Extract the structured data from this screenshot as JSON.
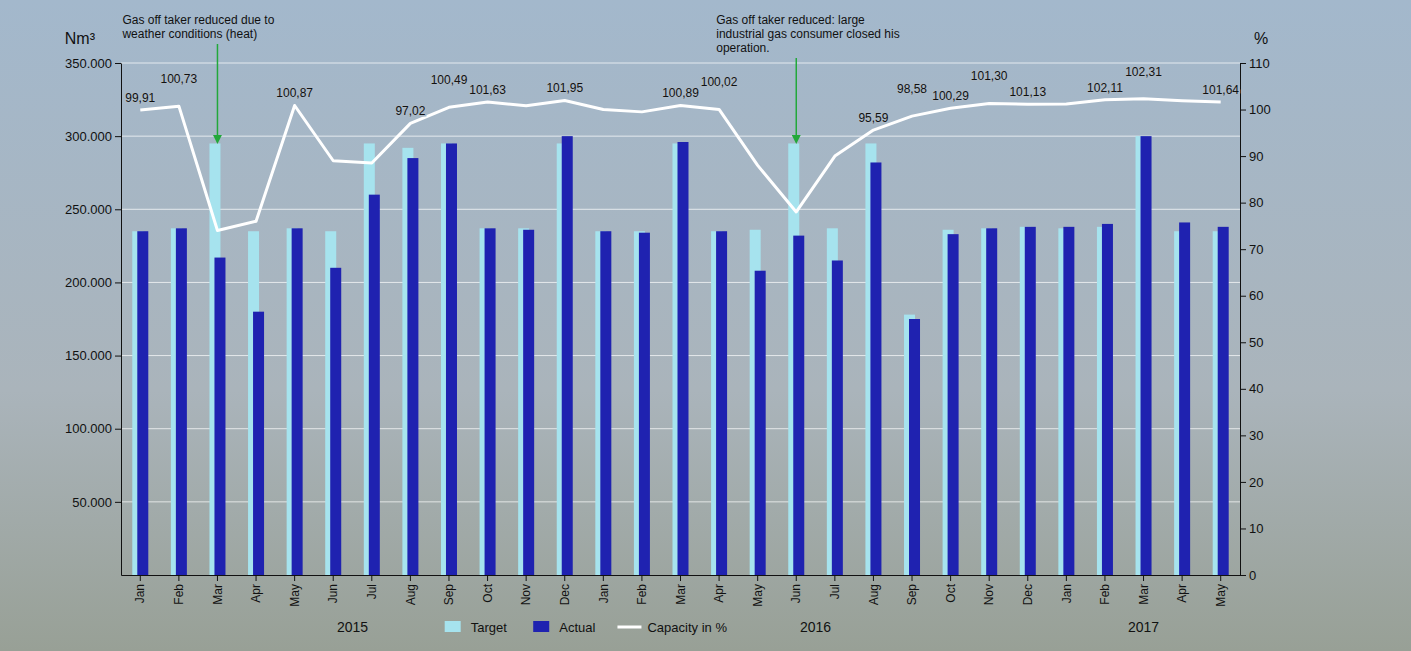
{
  "chart_data": {
    "type": "bar",
    "y_label": "Nm³",
    "y2_label": "%",
    "categories": [
      "Jan",
      "Feb",
      "Mar",
      "Apr",
      "May",
      "Jun",
      "Jul",
      "Aug",
      "Sep",
      "Oct",
      "Nov",
      "Dec",
      "Jan",
      "Feb",
      "Mar",
      "Apr",
      "May",
      "Jun",
      "Jul",
      "Aug",
      "Sep",
      "Oct",
      "Nov",
      "Dec",
      "Jan",
      "Feb",
      "Mar",
      "Apr",
      "May"
    ],
    "category_groups": [
      {
        "label": "2015",
        "first": 0,
        "last": 11
      },
      {
        "label": "2016",
        "first": 12,
        "last": 23
      },
      {
        "label": "2017",
        "first": 24,
        "last": 28
      }
    ],
    "series": [
      {
        "name": "Target",
        "type": "bar",
        "color": "#a6e3ee",
        "values": [
          235000,
          237000,
          295000,
          235000,
          237000,
          235000,
          295000,
          292000,
          295000,
          237000,
          237000,
          295000,
          235000,
          235000,
          295000,
          235000,
          236000,
          295000,
          237000,
          295000,
          178000,
          236000,
          237000,
          238000,
          237000,
          238000,
          300000,
          235000,
          235000
        ]
      },
      {
        "name": "Actual",
        "type": "bar",
        "color": "#1f22b0",
        "values": [
          235000,
          237000,
          217000,
          180000,
          237000,
          210000,
          260000,
          285000,
          295000,
          237000,
          236000,
          300000,
          235000,
          234000,
          296000,
          235000,
          208000,
          232000,
          215000,
          282000,
          175000,
          233000,
          237000,
          238000,
          238000,
          240000,
          300000,
          241000,
          238000
        ]
      },
      {
        "name": "Capacity in %",
        "type": "line",
        "axis": "y2",
        "color": "#ffffff",
        "data_labels": true,
        "values": [
          99.91,
          100.73,
          74,
          76,
          100.87,
          89,
          88.5,
          97.02,
          100.49,
          101.63,
          100.8,
          101.95,
          100,
          99.5,
          100.89,
          100.02,
          88,
          78,
          90,
          95.59,
          98.58,
          100.29,
          101.3,
          101.13,
          101.2,
          102.11,
          102.31,
          101.9,
          101.64
        ],
        "value_labels": [
          "99,91",
          "100,73",
          null,
          null,
          "100,87",
          null,
          null,
          "97,02",
          "100,49",
          "101,63",
          null,
          "101,95",
          null,
          null,
          "100,89",
          "100,02",
          null,
          null,
          null,
          "95,59",
          "98,58",
          "100,29",
          "101,30",
          "101,13",
          null,
          "102,11",
          "102,31",
          null,
          "101,64"
        ]
      }
    ],
    "ylim": [
      0,
      350000
    ],
    "yticks": [
      {
        "value": 50000,
        "label": "50.000"
      },
      {
        "value": 100000,
        "label": "100.000"
      },
      {
        "value": 150000,
        "label": "150.000"
      },
      {
        "value": 200000,
        "label": "200.000"
      },
      {
        "value": 250000,
        "label": "250.000"
      },
      {
        "value": 300000,
        "label": "300.000"
      },
      {
        "value": 350000,
        "label": "350.000"
      }
    ],
    "y2lim": [
      0,
      110
    ],
    "y2ticks": [
      0,
      10,
      20,
      30,
      40,
      50,
      60,
      70,
      80,
      90,
      100,
      110
    ],
    "grid": true,
    "legend": "bottom",
    "annotations": [
      {
        "text": "Gas off taker reduced due to weather conditions (heat)",
        "index": 2
      },
      {
        "text": "Gas off taker reduced: large industrial gas consumer closed his operation.",
        "index": 17
      }
    ]
  }
}
